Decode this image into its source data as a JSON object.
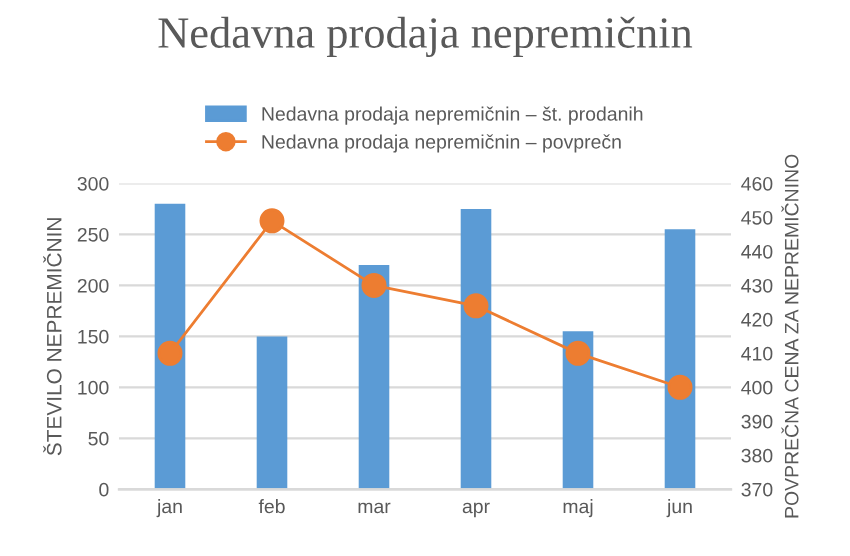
{
  "chart_data": {
    "type": "bar",
    "title": "Nedavna prodaja nepremičnin",
    "ylabel": "ŠTEVILO NEPREMIČNIN",
    "y2label": "POVPREČNA CENA ZA NEPREMIČNINO",
    "categories": [
      "jan",
      "feb",
      "mar",
      "apr",
      "maj",
      "jun"
    ],
    "series": [
      {
        "name": "Nedavna prodaja nepremičnin – št. prodanih",
        "color": "#5b9bd5",
        "values": [
          280,
          150,
          220,
          275,
          155,
          255
        ]
      },
      {
        "name": "Nedavna prodaja nepremičnin – povprečn",
        "type": "line",
        "axis": "y2",
        "color": "#ed7d31",
        "marker": "circle",
        "values": [
          410,
          449,
          430,
          424,
          410,
          400
        ]
      }
    ],
    "ylim": [
      0,
      300
    ],
    "yticks": [
      0,
      50,
      100,
      150,
      200,
      250,
      300
    ],
    "y2lim": [
      370,
      460
    ],
    "y2ticks": [
      370,
      380,
      390,
      400,
      410,
      420,
      430,
      440,
      450,
      460
    ],
    "grid": "y",
    "legend": "top"
  }
}
